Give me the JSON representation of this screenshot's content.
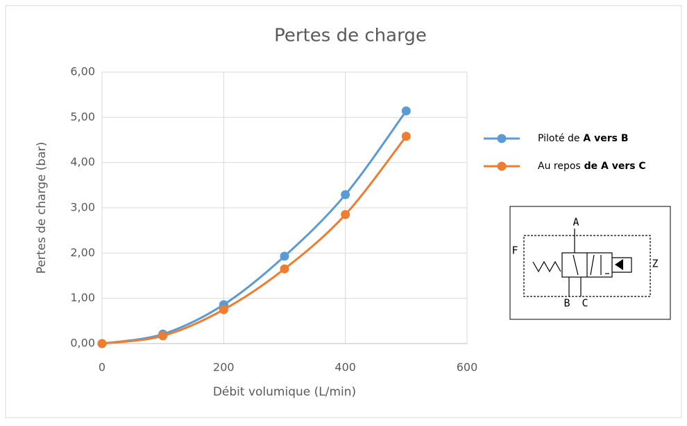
{
  "chart_data": {
    "type": "line",
    "title": "Pertes de charge",
    "x_label": "Débit volumique (L/min)",
    "y_label": "Pertes de charge (bar)",
    "x": [
      0,
      100,
      200,
      300,
      400,
      500
    ],
    "series": [
      {
        "name": "Piloté de A vers B",
        "color": "#5b9bd5",
        "values": [
          0,
          0.21,
          0.86,
          1.93,
          3.29,
          5.14
        ]
      },
      {
        "name": "Au repos de A vers C",
        "color": "#ed7d31",
        "values": [
          0,
          0.17,
          0.75,
          1.65,
          2.85,
          4.58
        ]
      }
    ],
    "xlim": [
      0,
      600
    ],
    "xticks": [
      0,
      200,
      400,
      600
    ],
    "ylim": [
      0,
      6
    ],
    "yticks": [
      {
        "value": 0,
        "label": "0,00"
      },
      {
        "value": 1,
        "label": "1,00"
      },
      {
        "value": 2,
        "label": "2,00"
      },
      {
        "value": 3,
        "label": "3,00"
      },
      {
        "value": 4,
        "label": "4,00"
      },
      {
        "value": 5,
        "label": "5,00"
      },
      {
        "value": 6,
        "label": "6,00"
      }
    ],
    "grid": true,
    "smooth": true,
    "legend": "right"
  },
  "diagram": {
    "labels": [
      "A",
      "F",
      "Z",
      "B",
      "C"
    ]
  }
}
